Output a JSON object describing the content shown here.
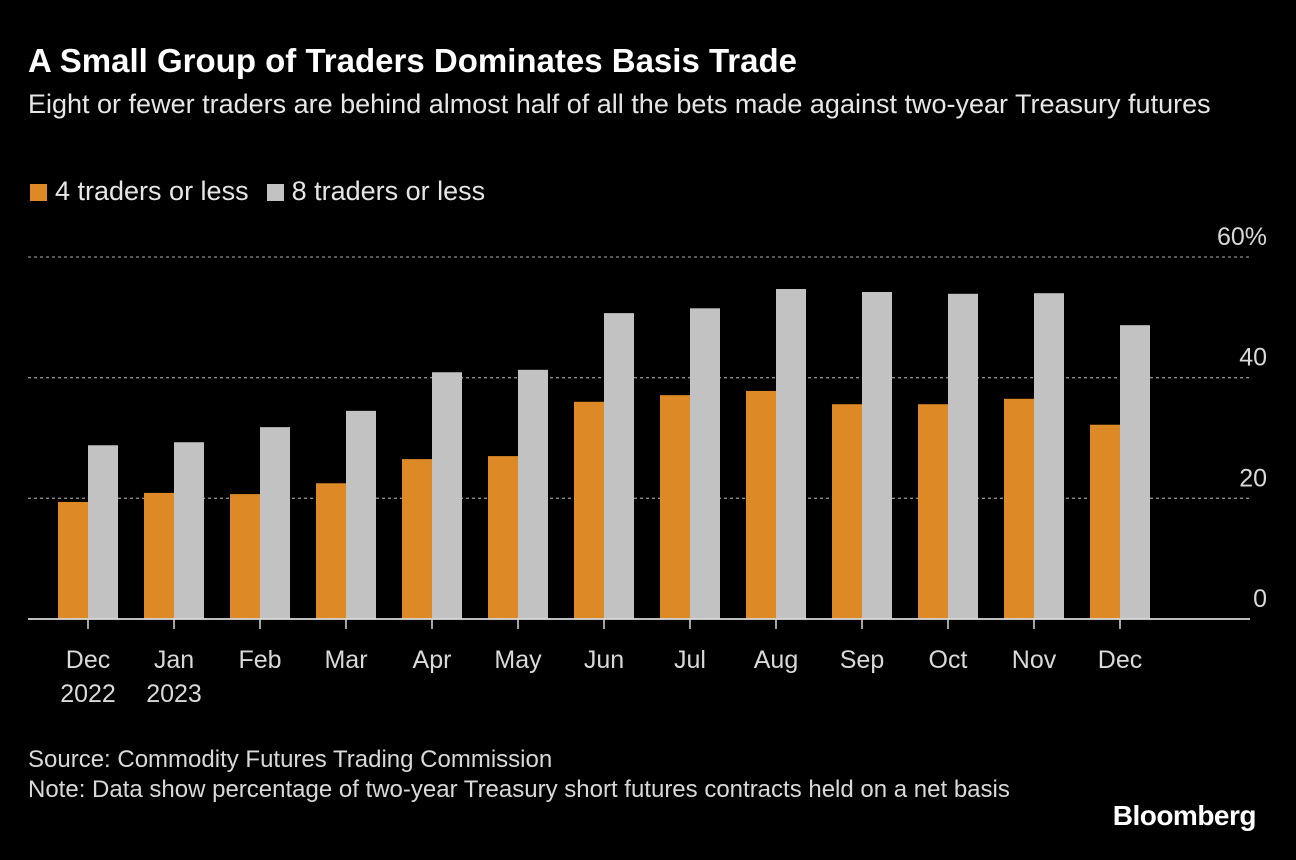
{
  "title": "A Small Group of Traders Dominates Basis Trade",
  "subtitle": "Eight or fewer traders are behind almost half of all the bets made against two-year Treasury futures",
  "source": "Source: Commodity Futures Trading Commission",
  "note": "Note: Data show percentage of two-year Treasury short futures contracts held on a net basis",
  "logo": "Bloomberg",
  "chart_data": {
    "type": "bar",
    "categories": [
      "Dec 2022",
      "Jan 2023",
      "Feb",
      "Mar",
      "Apr",
      "May",
      "Jun",
      "Jul",
      "Aug",
      "Sep",
      "Oct",
      "Nov",
      "Dec"
    ],
    "category_lines": [
      [
        "Dec",
        "2022"
      ],
      [
        "Jan",
        "2023"
      ],
      [
        "Feb"
      ],
      [
        "Mar"
      ],
      [
        "Apr"
      ],
      [
        "May"
      ],
      [
        "Jun"
      ],
      [
        "Jul"
      ],
      [
        "Aug"
      ],
      [
        "Sep"
      ],
      [
        "Oct"
      ],
      [
        "Nov"
      ],
      [
        "Dec"
      ]
    ],
    "series": [
      {
        "name": "4 traders or less",
        "color": "#dd8a26",
        "values": [
          19.4,
          20.9,
          20.7,
          22.5,
          26.5,
          27.0,
          36.0,
          37.1,
          37.8,
          35.6,
          35.6,
          36.5,
          32.2
        ]
      },
      {
        "name": "8 traders or less",
        "color": "#c2c2c2",
        "values": [
          28.8,
          29.3,
          31.8,
          34.5,
          40.9,
          41.3,
          50.7,
          51.5,
          54.7,
          54.2,
          53.9,
          54.0,
          48.7
        ]
      }
    ],
    "yticks": [
      0,
      20,
      40,
      60
    ],
    "ytick_labels": [
      "0",
      "20",
      "40",
      "60%"
    ],
    "ylim": [
      0,
      60
    ],
    "grid": true,
    "yaxis_side": "right",
    "legend_placement": "top-left"
  }
}
